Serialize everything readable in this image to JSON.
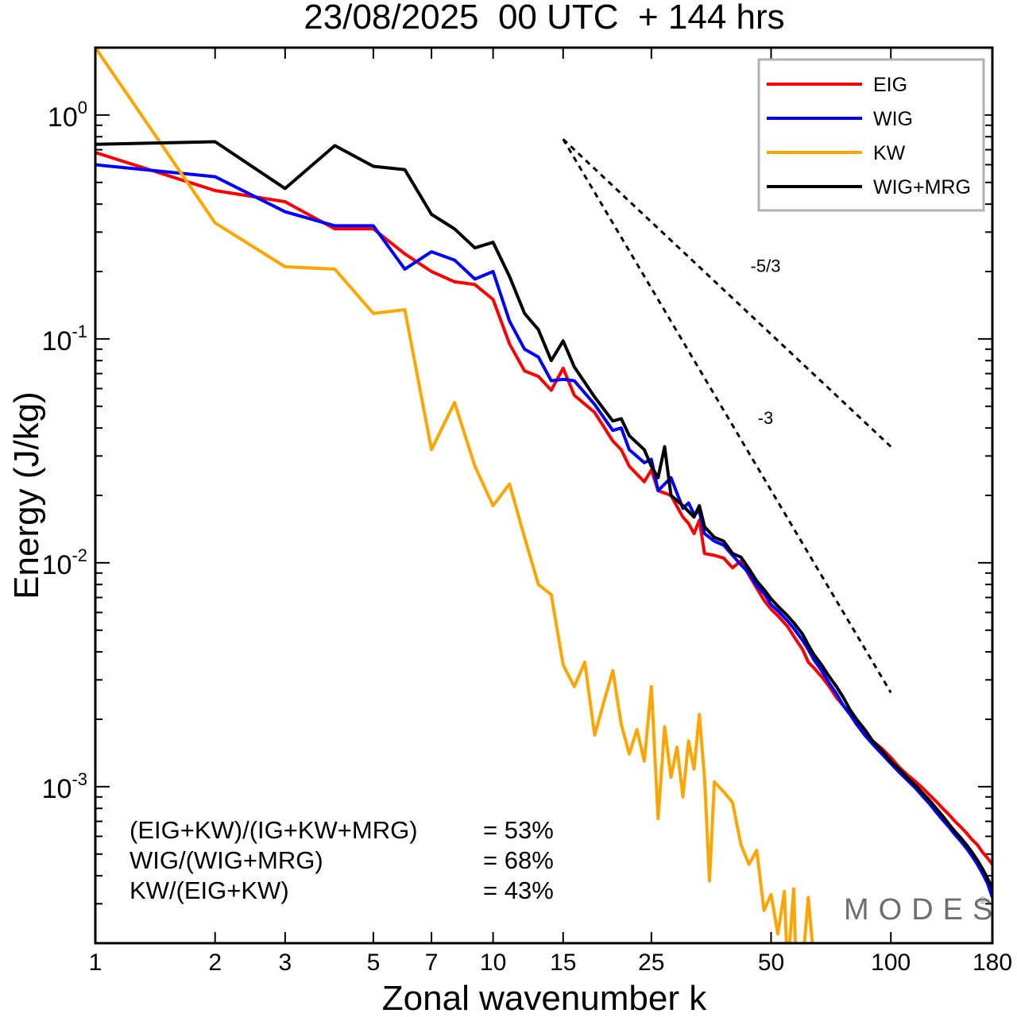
{
  "chart_data": {
    "type": "line",
    "title": "23/08/2025  00 UTC  + 144 hrs",
    "xlabel": "Zonal wavenumber k",
    "ylabel": "Energy (J/kg)",
    "xscale": "log",
    "yscale": "log",
    "xlim": [
      1,
      180
    ],
    "ylim": [
      0.0002,
      2.0
    ],
    "x_ticks": [
      1,
      2,
      3,
      5,
      7,
      10,
      15,
      25,
      50,
      100,
      180
    ],
    "x_tick_labels": [
      "1",
      "2",
      "3",
      "5",
      "7",
      "10",
      "15",
      "25",
      "50",
      "100",
      "180"
    ],
    "y_ticks": [
      {
        "value": 1,
        "base": "10",
        "exp": "0"
      },
      {
        "value": 0.1,
        "base": "10",
        "exp": "-1"
      },
      {
        "value": 0.01,
        "base": "10",
        "exp": "-2"
      },
      {
        "value": 0.001,
        "base": "10",
        "exp": "-3"
      }
    ],
    "legend_position": "top-right",
    "series": [
      {
        "name": "EIG",
        "color": "#ff0000",
        "points": [
          [
            1,
            0.68
          ],
          [
            2,
            0.46
          ],
          [
            3,
            0.41
          ],
          [
            4,
            0.31
          ],
          [
            5,
            0.31
          ],
          [
            6,
            0.24
          ],
          [
            7,
            0.2
          ],
          [
            8,
            0.18
          ],
          [
            9,
            0.175
          ],
          [
            10,
            0.15
          ],
          [
            11,
            0.095
          ],
          [
            12,
            0.072
          ],
          [
            13,
            0.068
          ],
          [
            14,
            0.059
          ],
          [
            15,
            0.074
          ],
          [
            16,
            0.056
          ],
          [
            18,
            0.047
          ],
          [
            20,
            0.035
          ],
          [
            21,
            0.032
          ],
          [
            22,
            0.027
          ],
          [
            24,
            0.023
          ],
          [
            25,
            0.026
          ],
          [
            26,
            0.021
          ],
          [
            28,
            0.02
          ],
          [
            30,
            0.016
          ],
          [
            31,
            0.015
          ],
          [
            32,
            0.0135
          ],
          [
            33,
            0.0155
          ],
          [
            34,
            0.011
          ],
          [
            36,
            0.0108
          ],
          [
            38,
            0.0105
          ],
          [
            40,
            0.0095
          ],
          [
            42,
            0.0102
          ],
          [
            44,
            0.0088
          ],
          [
            46,
            0.0077
          ],
          [
            48,
            0.0068
          ],
          [
            50,
            0.0062
          ],
          [
            52,
            0.0058
          ],
          [
            55,
            0.0052
          ],
          [
            57,
            0.0047
          ],
          [
            60,
            0.0041
          ],
          [
            62,
            0.0036
          ],
          [
            64,
            0.0034
          ],
          [
            67,
            0.0031
          ],
          [
            70,
            0.0028
          ],
          [
            73,
            0.0025
          ],
          [
            76,
            0.0023
          ],
          [
            79,
            0.0021
          ],
          [
            82,
            0.0019
          ],
          [
            86,
            0.00175
          ],
          [
            90,
            0.0016
          ],
          [
            95,
            0.00148
          ],
          [
            100,
            0.00135
          ],
          [
            105,
            0.00122
          ],
          [
            110,
            0.00113
          ],
          [
            115,
            0.00106
          ],
          [
            120,
            0.00099
          ],
          [
            125,
            0.00092
          ],
          [
            130,
            0.00086
          ],
          [
            135,
            0.0008
          ],
          [
            140,
            0.00075
          ],
          [
            145,
            0.0007
          ],
          [
            150,
            0.00066
          ],
          [
            155,
            0.00062
          ],
          [
            160,
            0.00058
          ],
          [
            165,
            0.00055
          ],
          [
            170,
            0.00051
          ],
          [
            175,
            0.00048
          ],
          [
            180,
            0.00045
          ]
        ]
      },
      {
        "name": "WIG",
        "color": "#0000ff",
        "points": [
          [
            1,
            0.6
          ],
          [
            2,
            0.53
          ],
          [
            3,
            0.37
          ],
          [
            4,
            0.32
          ],
          [
            5,
            0.32
          ],
          [
            6,
            0.205
          ],
          [
            7,
            0.245
          ],
          [
            8,
            0.225
          ],
          [
            9,
            0.185
          ],
          [
            10,
            0.2
          ],
          [
            11,
            0.12
          ],
          [
            12,
            0.09
          ],
          [
            13,
            0.083
          ],
          [
            14,
            0.065
          ],
          [
            15,
            0.066
          ],
          [
            16,
            0.065
          ],
          [
            18,
            0.051
          ],
          [
            20,
            0.039
          ],
          [
            21,
            0.04
          ],
          [
            22,
            0.032
          ],
          [
            24,
            0.028
          ],
          [
            25,
            0.029
          ],
          [
            26,
            0.021
          ],
          [
            28,
            0.024
          ],
          [
            30,
            0.0175
          ],
          [
            31,
            0.0185
          ],
          [
            32,
            0.0165
          ],
          [
            33,
            0.017
          ],
          [
            34,
            0.0135
          ],
          [
            36,
            0.0125
          ],
          [
            38,
            0.012
          ],
          [
            40,
            0.0108
          ],
          [
            42,
            0.0098
          ],
          [
            44,
            0.009
          ],
          [
            46,
            0.0079
          ],
          [
            48,
            0.0073
          ],
          [
            50,
            0.0065
          ],
          [
            52,
            0.0061
          ],
          [
            55,
            0.0055
          ],
          [
            57,
            0.0051
          ],
          [
            60,
            0.0045
          ],
          [
            62,
            0.0041
          ],
          [
            64,
            0.0037
          ],
          [
            67,
            0.0033
          ],
          [
            70,
            0.0029
          ],
          [
            73,
            0.0026
          ],
          [
            76,
            0.0023
          ],
          [
            79,
            0.0021
          ],
          [
            82,
            0.0019
          ],
          [
            86,
            0.0017
          ],
          [
            90,
            0.00155
          ],
          [
            95,
            0.0014
          ],
          [
            100,
            0.00127
          ],
          [
            105,
            0.00116
          ],
          [
            110,
            0.00107
          ],
          [
            115,
            0.00099
          ],
          [
            120,
            0.00091
          ],
          [
            125,
            0.00084
          ],
          [
            130,
            0.00077
          ],
          [
            135,
            0.00071
          ],
          [
            140,
            0.00066
          ],
          [
            145,
            0.00061
          ],
          [
            150,
            0.00057
          ],
          [
            155,
            0.00053
          ],
          [
            160,
            0.00049
          ],
          [
            165,
            0.00045
          ],
          [
            170,
            0.00041
          ],
          [
            175,
            0.00037
          ],
          [
            180,
            0.00032
          ]
        ]
      },
      {
        "name": "KW",
        "color": "#ffa500",
        "points": [
          [
            1,
            2.0
          ],
          [
            2,
            0.33
          ],
          [
            3,
            0.21
          ],
          [
            4,
            0.205
          ],
          [
            5,
            0.13
          ],
          [
            6,
            0.135
          ],
          [
            7,
            0.032
          ],
          [
            8,
            0.052
          ],
          [
            9,
            0.027
          ],
          [
            10,
            0.018
          ],
          [
            11,
            0.0225
          ],
          [
            12,
            0.013
          ],
          [
            13,
            0.008
          ],
          [
            14,
            0.0072
          ],
          [
            15,
            0.0035
          ],
          [
            16,
            0.0028
          ],
          [
            17,
            0.0036
          ],
          [
            18,
            0.0017
          ],
          [
            19,
            0.0024
          ],
          [
            20,
            0.0033
          ],
          [
            21,
            0.0019
          ],
          [
            22,
            0.0014
          ],
          [
            23,
            0.0018
          ],
          [
            24,
            0.0013
          ],
          [
            25,
            0.0028
          ],
          [
            26,
            0.00072
          ],
          [
            27,
            0.00185
          ],
          [
            28,
            0.0011
          ],
          [
            29,
            0.0015
          ],
          [
            30,
            0.0009
          ],
          [
            31,
            0.0016
          ],
          [
            32,
            0.0012
          ],
          [
            33,
            0.0021
          ],
          [
            34,
            0.0011
          ],
          [
            35,
            0.00038
          ],
          [
            36,
            0.00105
          ],
          [
            38,
            0.00095
          ],
          [
            40,
            0.00085
          ],
          [
            42,
            0.00055
          ],
          [
            44,
            0.00045
          ],
          [
            46,
            0.00052
          ],
          [
            48,
            0.00028
          ],
          [
            50,
            0.00033
          ],
          [
            52,
            0.00022
          ],
          [
            54,
            0.00034
          ],
          [
            55,
            0.00015
          ],
          [
            57,
            0.00035
          ],
          [
            58,
            0.00012
          ],
          [
            60,
            0.00016
          ],
          [
            62,
            0.00032
          ],
          [
            64,
            0.00017
          ]
        ]
      },
      {
        "name": "WIG+MRG",
        "color": "#000000",
        "points": [
          [
            1,
            0.74
          ],
          [
            2,
            0.76
          ],
          [
            3,
            0.47
          ],
          [
            4,
            0.73
          ],
          [
            5,
            0.59
          ],
          [
            6,
            0.57
          ],
          [
            7,
            0.36
          ],
          [
            8,
            0.31
          ],
          [
            9,
            0.255
          ],
          [
            10,
            0.27
          ],
          [
            11,
            0.19
          ],
          [
            12,
            0.13
          ],
          [
            13,
            0.11
          ],
          [
            14,
            0.08
          ],
          [
            15,
            0.098
          ],
          [
            16,
            0.075
          ],
          [
            18,
            0.055
          ],
          [
            20,
            0.043
          ],
          [
            21,
            0.044
          ],
          [
            22,
            0.037
          ],
          [
            24,
            0.032
          ],
          [
            25,
            0.027
          ],
          [
            26,
            0.024
          ],
          [
            27,
            0.033
          ],
          [
            28,
            0.02
          ],
          [
            30,
            0.018
          ],
          [
            32,
            0.016
          ],
          [
            33,
            0.018
          ],
          [
            34,
            0.0145
          ],
          [
            36,
            0.013
          ],
          [
            38,
            0.0125
          ],
          [
            40,
            0.011
          ],
          [
            42,
            0.0106
          ],
          [
            44,
            0.0094
          ],
          [
            46,
            0.0083
          ],
          [
            48,
            0.0076
          ],
          [
            50,
            0.0069
          ],
          [
            52,
            0.0064
          ],
          [
            55,
            0.0058
          ],
          [
            57,
            0.0054
          ],
          [
            60,
            0.0048
          ],
          [
            62,
            0.0043
          ],
          [
            64,
            0.0039
          ],
          [
            67,
            0.0035
          ],
          [
            70,
            0.0031
          ],
          [
            73,
            0.0028
          ],
          [
            76,
            0.0025
          ],
          [
            79,
            0.0022
          ],
          [
            82,
            0.002
          ],
          [
            86,
            0.0018
          ],
          [
            90,
            0.0016
          ],
          [
            95,
            0.00145
          ],
          [
            100,
            0.0013
          ],
          [
            105,
            0.0012
          ],
          [
            110,
            0.0011
          ],
          [
            115,
            0.00102
          ],
          [
            120,
            0.00094
          ],
          [
            125,
            0.00087
          ],
          [
            130,
            0.0008
          ],
          [
            135,
            0.00074
          ],
          [
            140,
            0.00068
          ],
          [
            145,
            0.00063
          ],
          [
            150,
            0.00059
          ],
          [
            155,
            0.00055
          ],
          [
            160,
            0.00051
          ],
          [
            165,
            0.00047
          ],
          [
            170,
            0.00043
          ],
          [
            175,
            0.00039
          ],
          [
            180,
            0.00035
          ]
        ]
      }
    ],
    "reference_lines": [
      {
        "label": "-5/3",
        "slope": -1.6667,
        "x": [
          15,
          100
        ],
        "y_start": 0.78
      },
      {
        "label": "-3",
        "slope": -3,
        "x": [
          15,
          100
        ],
        "y_start": 0.78
      }
    ],
    "annotations": [
      {
        "label": "(EIG+KW)/(IG+KW+MRG)",
        "value": "= 53%"
      },
      {
        "label": "WIG/(WIG+MRG)",
        "value": "= 68%"
      },
      {
        "label": "KW/(EIG+KW)",
        "value": "= 43%"
      }
    ],
    "watermark": "MODES",
    "watermark_mark": "©"
  }
}
